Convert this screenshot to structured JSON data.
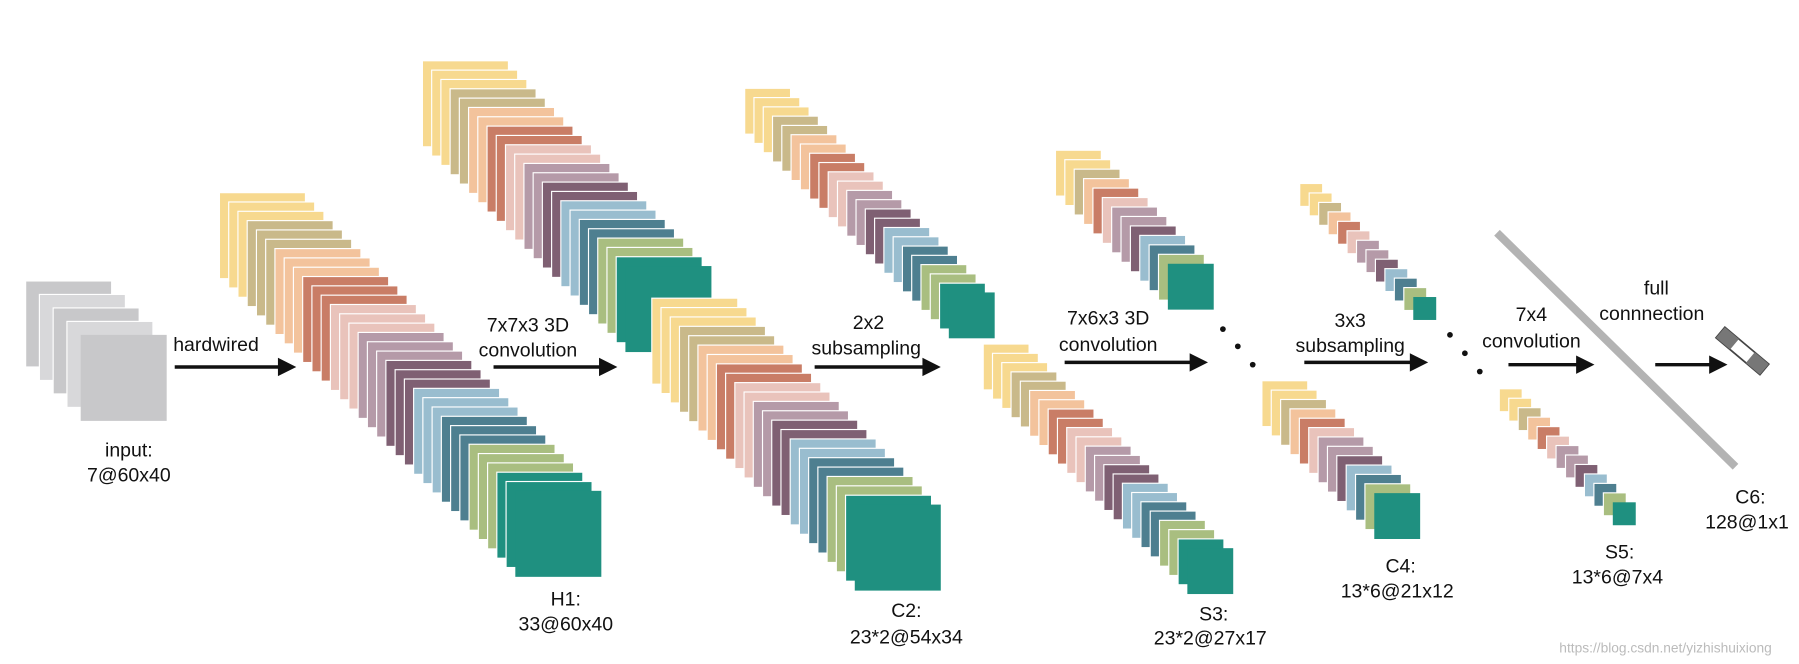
{
  "layers": [
    {
      "label": "input:",
      "shape": "7@60x40"
    },
    {
      "label": "H1:",
      "shape": "33@60x40"
    },
    {
      "label": "C2:",
      "shape": "23*2@54x34"
    },
    {
      "label": "S3:",
      "shape": "23*2@27x17"
    },
    {
      "label": "C4:",
      "shape": "13*6@21x12"
    },
    {
      "label": "S5:",
      "shape": "13*6@7x4"
    },
    {
      "label": "C6:",
      "shape": "128@1x1"
    }
  ],
  "operations": [
    {
      "lines": [
        "hardwired"
      ]
    },
    {
      "lines": [
        "7x7x3 3D",
        "convolution"
      ]
    },
    {
      "lines": [
        "2x2",
        "subsampling"
      ]
    },
    {
      "lines": [
        "7x6x3 3D",
        "convolution"
      ]
    },
    {
      "lines": [
        "3x3",
        "subsampling"
      ]
    },
    {
      "lines": [
        "7x4",
        "convolution"
      ]
    },
    {
      "lines": [
        "full",
        "connnection"
      ]
    }
  ],
  "watermark": "https://blog.csdn.net/yizhishuixiong"
}
